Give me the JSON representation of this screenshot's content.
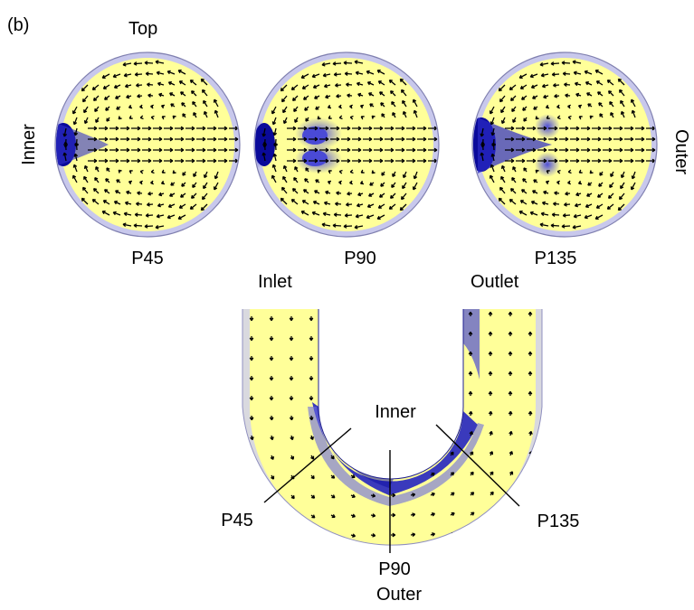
{
  "panel_label": "(b)",
  "cross_sections": {
    "top_label": "Top",
    "left_label": "Inner",
    "right_label": "Outer",
    "sections": [
      {
        "name": "P45"
      },
      {
        "name": "P90"
      },
      {
        "name": "P135"
      }
    ]
  },
  "u_bend": {
    "inlet_label": "Inlet",
    "outlet_label": "Outlet",
    "inner_label": "Inner",
    "outer_label": "Outer",
    "section_labels": [
      "P45",
      "P90",
      "P135"
    ]
  },
  "colors": {
    "high": "#ffff99",
    "mid": "#8f8fe6",
    "low": "#0a0aa0",
    "rim": "#c8c8e8"
  }
}
